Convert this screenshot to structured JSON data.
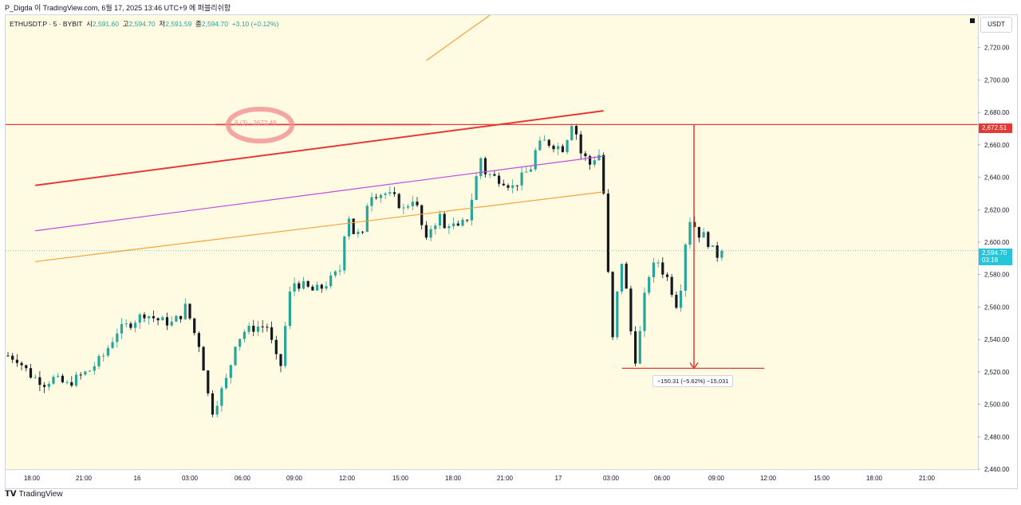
{
  "caption": "P_Digda 이 TradingView.com, 6월 17, 2025 13:46 UTC+9 에 퍼블리쉬함",
  "symbol_line": {
    "symbol": "ETHUSDT.P · 5 · BYBIT",
    "open_label": "시",
    "open": "2,591.60",
    "high_label": "고",
    "high": "2,594.70",
    "low_label": "저",
    "low": "2,591.59",
    "close_label": "종",
    "close": "2,594.70",
    "change": "+3.10 (+0.12%)"
  },
  "currency": "USDT",
  "footer_brand": "TradingView",
  "colors": {
    "up": "#26a69a",
    "down": "#131722",
    "bg": "#fffbe3",
    "level_line": "#e53935",
    "channel_upper": "#e53935",
    "channel_mid": "#c04ce0",
    "channel_lower": "#f5a33a"
  },
  "chart_data": {
    "type": "candlestick",
    "ylim": [
      2460,
      2740
    ],
    "yticks": [
      "2,460.00",
      "2,480.00",
      "2,500.00",
      "2,520.00",
      "2,540.00",
      "2,560.00",
      "2,580.00",
      "2,600.00",
      "2,620.00",
      "2,640.00",
      "2,660.00",
      "2,680.00",
      "2,700.00",
      "2,720.00"
    ],
    "xticks": [
      "18:00",
      "21:00",
      "16",
      "03:00",
      "06:00",
      "09:00",
      "12:00",
      "15:00",
      "18:00",
      "21:00",
      "17",
      "03:00",
      "06:00",
      "09:00",
      "12:00",
      "15:00",
      "18:00",
      "21:00"
    ],
    "close_series": [
      [
        0,
        2530
      ],
      [
        2,
        2528
      ],
      [
        5,
        2518
      ],
      [
        8,
        2513
      ],
      [
        10,
        2516
      ],
      [
        13,
        2512
      ],
      [
        15,
        2516
      ],
      [
        18,
        2521
      ],
      [
        21,
        2530
      ],
      [
        24,
        2545
      ],
      [
        27,
        2550
      ],
      [
        30,
        2556
      ],
      [
        33,
        2552
      ],
      [
        36,
        2550
      ],
      [
        38,
        2555
      ],
      [
        39,
        2560
      ],
      [
        40,
        2553
      ],
      [
        41,
        2544
      ],
      [
        42,
        2537
      ],
      [
        43,
        2523
      ],
      [
        44,
        2506
      ],
      [
        45,
        2496
      ],
      [
        46,
        2502
      ],
      [
        48,
        2515
      ],
      [
        49,
        2525
      ],
      [
        50,
        2538
      ],
      [
        52,
        2545
      ],
      [
        55,
        2548
      ],
      [
        57,
        2548
      ],
      [
        58,
        2538
      ],
      [
        59,
        2528
      ],
      [
        60,
        2524
      ],
      [
        61,
        2548
      ],
      [
        62,
        2568
      ],
      [
        63,
        2575
      ],
      [
        65,
        2573
      ],
      [
        67,
        2570
      ],
      [
        69,
        2572
      ],
      [
        71,
        2577
      ],
      [
        73,
        2583
      ],
      [
        74,
        2606
      ],
      [
        75,
        2616
      ],
      [
        76,
        2606
      ],
      [
        78,
        2604
      ],
      [
        79,
        2624
      ],
      [
        80,
        2630
      ],
      [
        83,
        2630
      ],
      [
        85,
        2627
      ],
      [
        87,
        2620
      ],
      [
        89,
        2627
      ],
      [
        90,
        2621
      ],
      [
        91,
        2610
      ],
      [
        92,
        2600
      ],
      [
        93,
        2609
      ],
      [
        95,
        2616
      ],
      [
        96,
        2608
      ],
      [
        97,
        2612
      ],
      [
        99,
        2608
      ],
      [
        101,
        2615
      ],
      [
        102,
        2627
      ],
      [
        103,
        2640
      ],
      [
        104,
        2652
      ],
      [
        105,
        2643
      ],
      [
        107,
        2640
      ],
      [
        109,
        2638
      ],
      [
        111,
        2634
      ],
      [
        113,
        2640
      ],
      [
        115,
        2646
      ],
      [
        116,
        2656
      ],
      [
        117,
        2660
      ],
      [
        118,
        2662
      ],
      [
        120,
        2660
      ],
      [
        122,
        2658
      ],
      [
        123,
        2665
      ],
      [
        124,
        2674
      ],
      [
        125,
        2667
      ],
      [
        126,
        2655
      ],
      [
        127,
        2652
      ],
      [
        128,
        2648
      ],
      [
        129,
        2652
      ],
      [
        130,
        2654
      ],
      [
        131,
        2630
      ],
      [
        132,
        2580
      ],
      [
        133,
        2540
      ],
      [
        134,
        2568
      ],
      [
        135,
        2588
      ],
      [
        136,
        2570
      ],
      [
        137,
        2545
      ],
      [
        138,
        2528
      ],
      [
        139,
        2544
      ],
      [
        140,
        2566
      ],
      [
        141,
        2580
      ],
      [
        142,
        2585
      ],
      [
        143,
        2588
      ],
      [
        144,
        2582
      ],
      [
        145,
        2578
      ],
      [
        146,
        2570
      ],
      [
        147,
        2562
      ],
      [
        148,
        2573
      ],
      [
        149,
        2600
      ],
      [
        150,
        2614
      ],
      [
        151,
        2610
      ],
      [
        152,
        2605
      ],
      [
        153,
        2604
      ],
      [
        154,
        2600
      ],
      [
        155,
        2595
      ],
      [
        156,
        2592
      ],
      [
        157,
        2594.7
      ]
    ],
    "n_bars": 158,
    "horizontal_level": {
      "value": 2672.51,
      "label": "2,672.51"
    },
    "alert_label": "8 (3) · 2672.48",
    "last_price": {
      "value": 2594.7,
      "label": "2,594.70",
      "countdown": "03:18"
    },
    "measure": {
      "label": "−150.31 (−5.62%) −15,031",
      "from": 2672.51,
      "to": 2522.2
    },
    "trendlines": [
      {
        "name": "channel_upper",
        "from": [
          6,
          2635
        ],
        "to": [
          131,
          2681
        ]
      },
      {
        "name": "channel_mid",
        "from": [
          6,
          2607
        ],
        "to": [
          131,
          2653
        ]
      },
      {
        "name": "channel_lower",
        "from": [
          6,
          2588
        ],
        "to": [
          131,
          2631
        ]
      },
      {
        "name": "orange_top",
        "from": [
          92,
          2712
        ],
        "to": [
          106,
          2740
        ]
      }
    ]
  }
}
